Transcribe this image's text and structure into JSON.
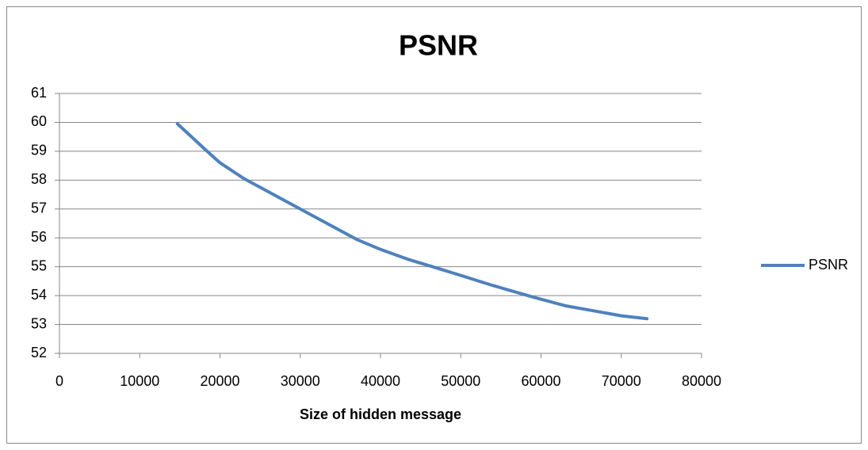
{
  "chart_data": {
    "type": "line",
    "title": "PSNR",
    "xlabel": "Size of hidden message",
    "x": [
      14700,
      18000,
      20000,
      23000,
      26000,
      30000,
      34000,
      37000,
      40000,
      43500,
      46500,
      50000,
      54000,
      59000,
      63000,
      66000,
      70000,
      73200
    ],
    "series": [
      {
        "name": "PSNR",
        "color": "#4f81bd",
        "values": [
          59.95,
          59.1,
          58.6,
          58.05,
          57.6,
          57.0,
          56.4,
          55.95,
          55.6,
          55.25,
          55.0,
          54.7,
          54.35,
          53.95,
          53.65,
          53.5,
          53.3,
          53.2
        ]
      }
    ],
    "xlim": [
      0,
      80000
    ],
    "xticks": [
      0,
      10000,
      20000,
      30000,
      40000,
      50000,
      60000,
      70000,
      80000
    ],
    "ylim": [
      52,
      61
    ],
    "yticks": [
      52,
      53,
      54,
      55,
      56,
      57,
      58,
      59,
      60,
      61
    ],
    "grid": true,
    "legend": "right"
  }
}
